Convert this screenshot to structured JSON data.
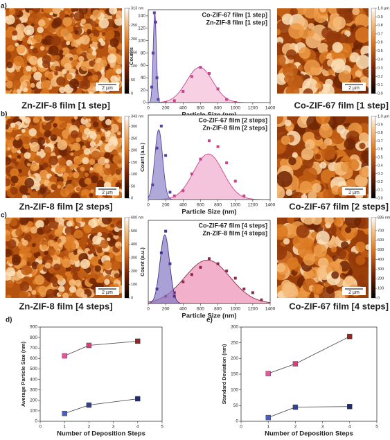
{
  "panels": [
    {
      "label": "a)",
      "left": {
        "scale_bar": "2 µm",
        "caption": "Zn-ZIF-8 film [1 step]",
        "colorbar": [
          0,
          50,
          100,
          150,
          200,
          250,
          {
            "value": 313,
            "label": "313 nm"
          }
        ]
      },
      "right": {
        "scale_bar": "2 µm",
        "caption": "Co-ZIF-67 film [1 step]",
        "colorbar": [
          {
            "value": 0,
            "label": "0.0"
          },
          0.1,
          0.2,
          0.3,
          0.4,
          0.5,
          0.6,
          0.7,
          0.8,
          0.9,
          {
            "value": 1,
            "label": "1.0 µm"
          }
        ]
      }
    },
    {
      "label": "b)",
      "left": {
        "scale_bar": "2 µm",
        "caption": "Zn-ZIF-8 film [2 steps]",
        "colorbar": [
          0,
          50,
          100,
          150,
          200,
          250,
          300,
          {
            "value": 343,
            "label": "343 nm"
          }
        ]
      },
      "right": {
        "scale_bar": "2 µm",
        "caption": "Co-ZIF-67 film [2 steps]",
        "colorbar": [
          {
            "value": 0,
            "label": "0.0"
          },
          0.1,
          0.2,
          0.3,
          0.4,
          0.5,
          0.6,
          0.7,
          0.8,
          0.9,
          {
            "value": 1,
            "label": "1.0 µm"
          }
        ]
      }
    },
    {
      "label": "c)",
      "left": {
        "scale_bar": "2 µm",
        "caption": "Zn-ZIF-8 film [4 steps]",
        "colorbar": [
          0,
          100,
          200,
          300,
          400,
          500,
          {
            "value": 600,
            "label": "600 nm"
          }
        ]
      },
      "right": {
        "scale_bar": "2 µm",
        "caption": "Co-ZIF-67 film [4 steps]",
        "colorbar": [
          0,
          100,
          200,
          300,
          400,
          500,
          600,
          700,
          {
            "value": 836,
            "label": "836 nm"
          }
        ]
      }
    }
  ],
  "chart_data": [
    {
      "type": "histogram_fit",
      "xlabel": "Particle Size (nm)",
      "ylabel": "Counts",
      "xlim": [
        0,
        1400
      ],
      "xticks": [
        0,
        200,
        400,
        600,
        800,
        1000,
        1200,
        1400
      ],
      "ylim": [
        0,
        150
      ],
      "yticks": [
        0,
        20,
        40,
        60,
        80,
        100,
        120,
        140
      ],
      "series": [
        {
          "name": "Co-ZIF-67 film [1 step]",
          "color": "#c9448e",
          "fill": "#f4bcd9",
          "x": [
            200,
            300,
            400,
            500,
            600,
            700,
            800,
            900,
            1000
          ],
          "values": [
            0,
            3,
            18,
            42,
            57,
            47,
            22,
            5,
            0
          ],
          "fit": {
            "center": 590,
            "sd": 150,
            "height": 57
          }
        },
        {
          "name": "Zn-ZIF-8 film [1 step]",
          "color": "#5a3fa0",
          "fill": "#9189cc",
          "x": [
            40,
            55,
            70,
            85,
            100,
            115
          ],
          "values": [
            25,
            80,
            145,
            130,
            40,
            5
          ],
          "fit": {
            "center": 75,
            "sd": 18,
            "height": 145
          }
        }
      ]
    },
    {
      "type": "histogram_fit",
      "xlabel": "Particle Size (nm)",
      "ylabel": "Count (a.u.)",
      "xlim": [
        0,
        1400
      ],
      "xticks": [
        0,
        200,
        400,
        600,
        800,
        1000,
        1200,
        1400
      ],
      "ylim": [
        0,
        1.15
      ],
      "yticks": [],
      "series": [
        {
          "name": "Co-ZIF-67 film [2 steps]",
          "color": "#c9448e",
          "fill": "#f0a9cd",
          "x": [
            300,
            400,
            500,
            600,
            700,
            800,
            900,
            1000,
            1100
          ],
          "values": [
            0.05,
            0.12,
            0.35,
            0.55,
            0.8,
            0.72,
            0.5,
            0.25,
            0.05
          ],
          "fit": {
            "center": 690,
            "sd": 170,
            "height": 0.62
          }
        },
        {
          "name": "Zn-ZIF-8 film [2 steps]",
          "color": "#5a3fa0",
          "fill": "#8d84c9",
          "x": [
            50,
            100,
            150,
            200,
            250
          ],
          "values": [
            0.2,
            0.7,
            1,
            0.6,
            0.1
          ],
          "fit": {
            "center": 120,
            "sd": 45,
            "height": 0.95
          }
        }
      ]
    },
    {
      "type": "histogram_fit",
      "xlabel": "Particle Size (nm)",
      "ylabel": "Count (a.u.)",
      "xlim": [
        0,
        1400
      ],
      "xticks": [
        0,
        200,
        400,
        600,
        800,
        1000,
        1200,
        1400
      ],
      "ylim": [
        0,
        1.15
      ],
      "yticks": [],
      "series": [
        {
          "name": "Co-ZIF-67 film [4 steps]",
          "color": "#8c2a4a",
          "fill": "#ee8fb4",
          "x": [
            200,
            300,
            400,
            500,
            600,
            700,
            800,
            900,
            1000,
            1100,
            1200,
            1300
          ],
          "values": [
            0.1,
            0.15,
            0.3,
            0.4,
            0.5,
            0.62,
            0.55,
            0.45,
            0.35,
            0.2,
            0.15,
            0.05
          ],
          "fit": {
            "center": 680,
            "sd": 260,
            "height": 0.6
          }
        },
        {
          "name": "Zn-ZIF-8 film [4 steps]",
          "color": "#4a3290",
          "fill": "#8578c4",
          "x": [
            100,
            150,
            200,
            250,
            300
          ],
          "values": [
            0.2,
            0.7,
            1,
            0.55,
            0.1
          ],
          "fit": {
            "center": 190,
            "sd": 55,
            "height": 0.95
          }
        }
      ]
    },
    {
      "type": "line",
      "label": "d)",
      "xlabel": "Number of Deposition Steps",
      "ylabel": "Average Particle Size (nm)",
      "xlim": [
        0,
        5
      ],
      "xticks": [
        0,
        1,
        2,
        3,
        4,
        5
      ],
      "ylim": [
        0,
        900
      ],
      "yticks": [
        0,
        100,
        200,
        300,
        400,
        500,
        600,
        700,
        800,
        900
      ],
      "series": [
        {
          "line_color": "#555555",
          "colors": [
            "#e0559b",
            "#d8407c",
            "#8c2a2a"
          ],
          "x": [
            1,
            2,
            4
          ],
          "values": [
            625,
            725,
            765
          ]
        },
        {
          "line_color": "#555555",
          "colors": [
            "#4a5fc0",
            "#33408f",
            "#1f2c70"
          ],
          "x": [
            1,
            2,
            4
          ],
          "values": [
            75,
            155,
            215
          ]
        }
      ]
    },
    {
      "type": "line",
      "label": "e)",
      "xlabel": "Number of Deposition Steps",
      "ylabel": "Standard Deviation (nm)",
      "xlim": [
        0,
        5
      ],
      "xticks": [
        0,
        1,
        2,
        3,
        4,
        5
      ],
      "ylim": [
        0,
        300
      ],
      "yticks": [
        0,
        50,
        100,
        150,
        200,
        250,
        300
      ],
      "series": [
        {
          "line_color": "#555555",
          "colors": [
            "#e0559b",
            "#d8407c",
            "#8c2a2a"
          ],
          "x": [
            1,
            2,
            4
          ],
          "values": [
            152,
            183,
            270
          ]
        },
        {
          "line_color": "#555555",
          "colors": [
            "#4a5fc0",
            "#33408f",
            "#1f2c70"
          ],
          "x": [
            1,
            2,
            4
          ],
          "values": [
            12,
            45,
            47
          ]
        }
      ]
    }
  ]
}
